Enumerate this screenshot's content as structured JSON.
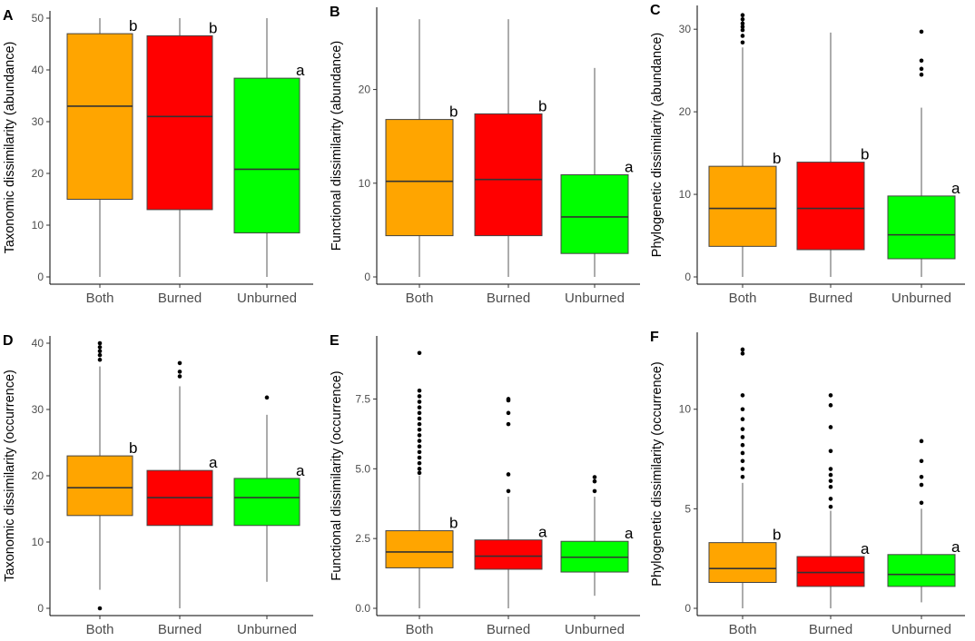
{
  "colors": {
    "Both": "#FFA500",
    "Burned": "#FF0000",
    "Unburned": "#00FF00"
  },
  "chart_data": [
    {
      "type": "boxplot",
      "panel": "A",
      "ylabel": "Taxonomic dissimilarity (abundance)",
      "categories": [
        "Both",
        "Burned",
        "Unburned"
      ],
      "ylim": [
        0,
        50
      ],
      "yticks": [
        0,
        10,
        20,
        30,
        40,
        50
      ],
      "yticklabels": [
        "0",
        "10",
        "20",
        "30",
        "40",
        "50"
      ],
      "boxes": [
        {
          "category": "Both",
          "min": 0,
          "q1": 15,
          "median": 33,
          "q3": 47,
          "max": 50,
          "outliers": [],
          "sig": "b"
        },
        {
          "category": "Burned",
          "min": 0,
          "q1": 13,
          "median": 31,
          "q3": 46.6,
          "max": 50,
          "outliers": [],
          "sig": "b"
        },
        {
          "category": "Unburned",
          "min": 0,
          "q1": 8.5,
          "median": 20.8,
          "q3": 38.4,
          "max": 50,
          "outliers": [],
          "sig": "a"
        }
      ]
    },
    {
      "type": "boxplot",
      "panel": "B",
      "ylabel": "Functional dissimilarity (abundance)",
      "categories": [
        "Both",
        "Burned",
        "Unburned"
      ],
      "ylim": [
        0,
        28
      ],
      "yticks": [
        0,
        10,
        20
      ],
      "yticklabels": [
        "0",
        "10",
        "20"
      ],
      "boxes": [
        {
          "category": "Both",
          "min": 0,
          "q1": 4.4,
          "median": 10.2,
          "q3": 16.8,
          "max": 27.5,
          "outliers": [],
          "sig": "b"
        },
        {
          "category": "Burned",
          "min": 0,
          "q1": 4.4,
          "median": 10.4,
          "q3": 17.4,
          "max": 27.5,
          "outliers": [],
          "sig": "b"
        },
        {
          "category": "Unburned",
          "min": 0,
          "q1": 2.5,
          "median": 6.4,
          "q3": 10.9,
          "max": 22.3,
          "outliers": [],
          "sig": "a"
        }
      ]
    },
    {
      "type": "boxplot",
      "panel": "C",
      "ylabel": "Phylogenetic dissimilarity (abundance)",
      "categories": [
        "Both",
        "Burned",
        "Unburned"
      ],
      "ylim": [
        0,
        32
      ],
      "yticks": [
        0,
        10,
        20,
        30
      ],
      "yticklabels": [
        "0",
        "10",
        "20",
        "30"
      ],
      "boxes": [
        {
          "category": "Both",
          "min": 0,
          "q1": 3.7,
          "median": 8.3,
          "q3": 13.4,
          "max": 27.8,
          "outliers": [
            28.4,
            29.2,
            29.9,
            30.3,
            30.7,
            31.2,
            31.7
          ],
          "sig": "b"
        },
        {
          "category": "Burned",
          "min": 0,
          "q1": 3.3,
          "median": 8.3,
          "q3": 13.9,
          "max": 29.6,
          "outliers": [],
          "sig": "b"
        },
        {
          "category": "Unburned",
          "min": 0,
          "q1": 2.2,
          "median": 5.1,
          "q3": 9.8,
          "max": 20.5,
          "outliers": [
            24.5,
            25.2,
            26.2,
            29.7
          ],
          "sig": "a"
        }
      ]
    },
    {
      "type": "boxplot",
      "panel": "D",
      "ylabel": "Taxonomic dissimilarity (occurrence)",
      "categories": [
        "Both",
        "Burned",
        "Unburned"
      ],
      "ylim": [
        0,
        40
      ],
      "yticks": [
        0,
        10,
        20,
        30,
        40
      ],
      "yticklabels": [
        "0",
        "10",
        "20",
        "30",
        "40"
      ],
      "boxes": [
        {
          "category": "Both",
          "min": 2.8,
          "q1": 14,
          "median": 18.2,
          "q3": 23,
          "max": 36.5,
          "outliers": [
            0,
            37.5,
            38.2,
            38.8,
            39.4,
            40
          ],
          "sig": "b"
        },
        {
          "category": "Burned",
          "min": 0,
          "q1": 12.5,
          "median": 16.7,
          "q3": 20.8,
          "max": 33.5,
          "outliers": [
            35,
            35.7,
            37
          ],
          "sig": "a"
        },
        {
          "category": "Unburned",
          "min": 4,
          "q1": 12.5,
          "median": 16.7,
          "q3": 19.6,
          "max": 29.2,
          "outliers": [
            31.8
          ],
          "sig": "a"
        }
      ]
    },
    {
      "type": "boxplot",
      "panel": "E",
      "ylabel": "Functional dissimilarity (occurrence)",
      "categories": [
        "Both",
        "Burned",
        "Unburned"
      ],
      "ylim": [
        0,
        9.5
      ],
      "yticks": [
        0,
        2.5,
        5,
        7.5
      ],
      "yticklabels": [
        "0.0",
        "2.5",
        "5.0",
        "7.5"
      ],
      "boxes": [
        {
          "category": "Both",
          "min": 0,
          "q1": 1.45,
          "median": 2.02,
          "q3": 2.78,
          "max": 4.75,
          "outliers": [
            4.85,
            5.0,
            5.2,
            5.4,
            5.6,
            5.8,
            6.0,
            6.2,
            6.4,
            6.6,
            6.8,
            7.0,
            7.2,
            7.4,
            7.6,
            7.8,
            9.15
          ],
          "sig": "b"
        },
        {
          "category": "Burned",
          "min": 0,
          "q1": 1.4,
          "median": 1.87,
          "q3": 2.45,
          "max": 4.0,
          "outliers": [
            4.2,
            4.8,
            6.6,
            7.0,
            7.45,
            7.5
          ],
          "sig": "a"
        },
        {
          "category": "Unburned",
          "min": 0.45,
          "q1": 1.3,
          "median": 1.83,
          "q3": 2.4,
          "max": 4.0,
          "outliers": [
            4.2,
            4.55,
            4.7
          ],
          "sig": "a"
        }
      ]
    },
    {
      "type": "boxplot",
      "panel": "F",
      "ylabel": "Phylogenetic dissimilarity (occurrence)",
      "categories": [
        "Both",
        "Burned",
        "Unburned"
      ],
      "ylim": [
        0,
        13.5
      ],
      "yticks": [
        0,
        5,
        10
      ],
      "yticklabels": [
        "0",
        "5",
        "10"
      ],
      "boxes": [
        {
          "category": "Both",
          "min": 0,
          "q1": 1.3,
          "median": 2.0,
          "q3": 3.3,
          "max": 6.3,
          "outliers": [
            6.6,
            7.0,
            7.4,
            7.8,
            8.2,
            8.6,
            9.0,
            9.5,
            10.0,
            10.7,
            12.8,
            13.0
          ],
          "sig": "b"
        },
        {
          "category": "Burned",
          "min": 0,
          "q1": 1.1,
          "median": 1.8,
          "q3": 2.6,
          "max": 4.9,
          "outliers": [
            5.1,
            5.5,
            6.1,
            6.4,
            6.7,
            7.0,
            7.9,
            9.1,
            10.2,
            10.7
          ],
          "sig": "a"
        },
        {
          "category": "Unburned",
          "min": 0.3,
          "q1": 1.1,
          "median": 1.7,
          "q3": 2.7,
          "max": 5.0,
          "outliers": [
            5.3,
            6.2,
            6.6,
            7.4,
            8.4
          ],
          "sig": "a"
        }
      ]
    }
  ]
}
